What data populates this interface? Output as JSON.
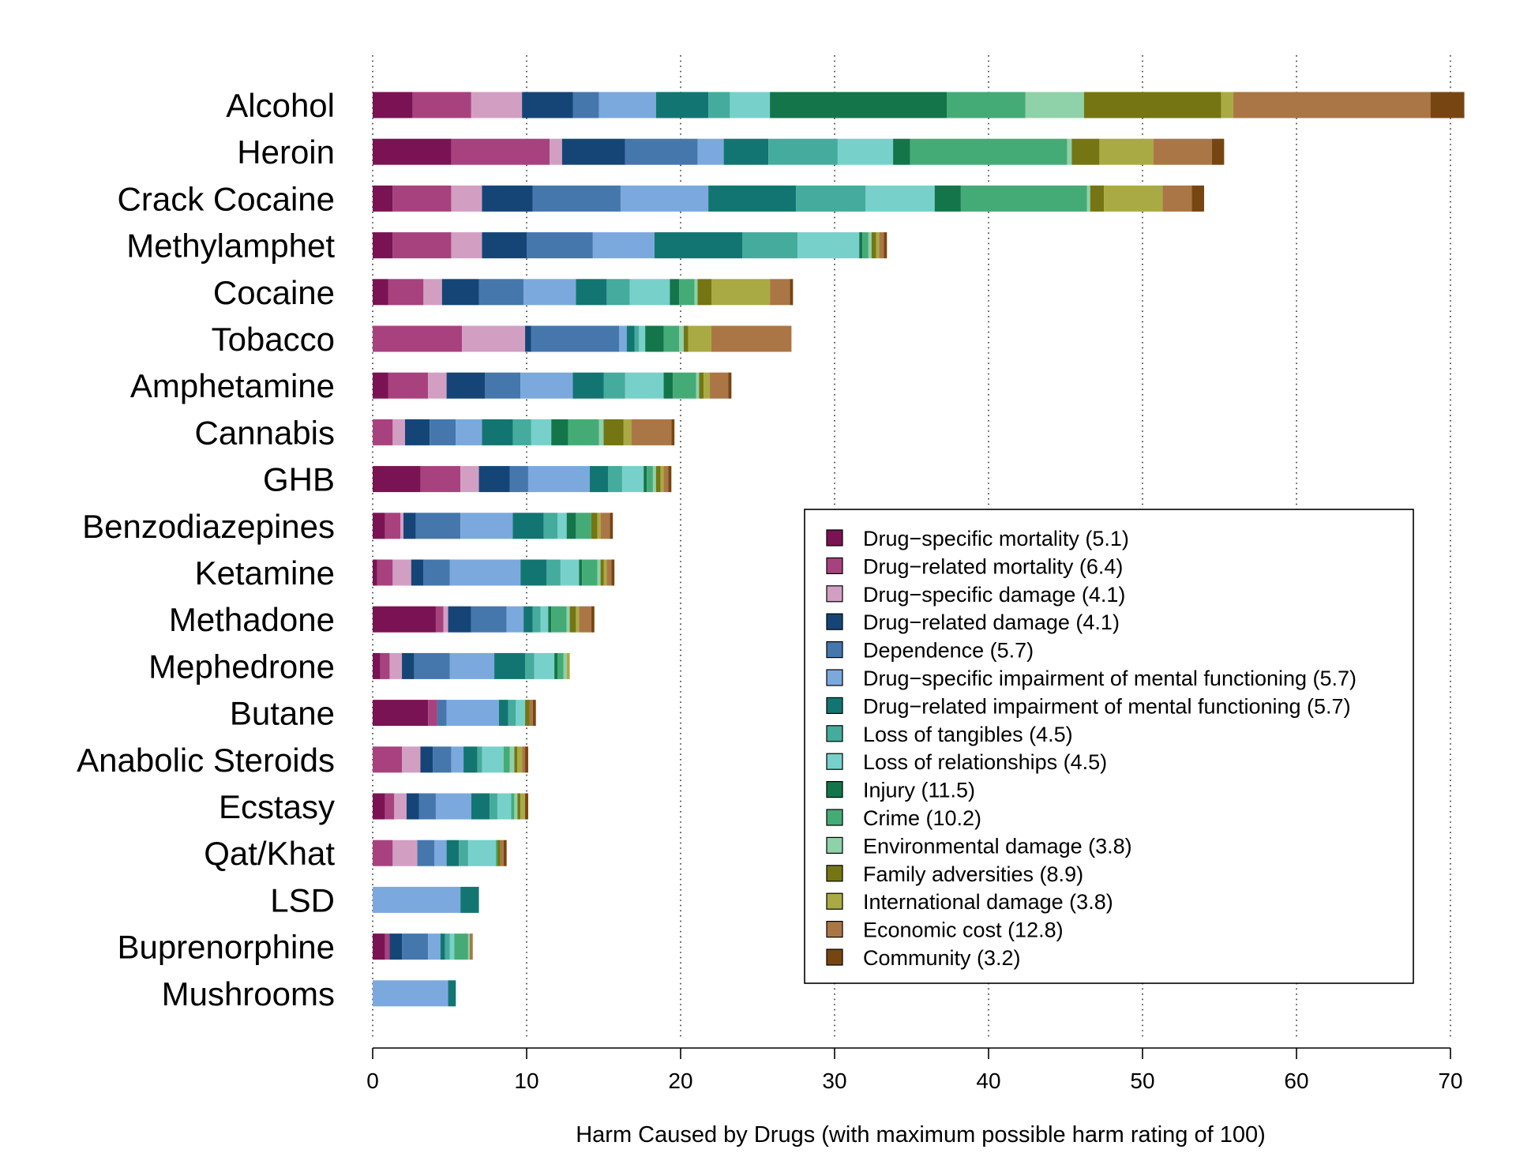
{
  "chart_data": {
    "type": "bar",
    "orientation": "horizontal",
    "stacked": true,
    "xlabel": "Harm Caused by Drugs (with maximum possible harm rating of 100)",
    "xlim": [
      0,
      72
    ],
    "xticks": [
      0,
      10,
      20,
      30,
      40,
      50,
      60,
      70
    ],
    "grid": true,
    "legend_position": "bottom-right",
    "categories": [
      "Alcohol",
      "Heroin",
      "Crack Cocaine",
      "Methylamphet",
      "Cocaine",
      "Tobacco",
      "Amphetamine",
      "Cannabis",
      "GHB",
      "Benzodiazepines",
      "Ketamine",
      "Methadone",
      "Mephedrone",
      "Butane",
      "Anabolic Steroids",
      "Ecstasy",
      "Qat/Khat",
      "LSD",
      "Buprenorphine",
      "Mushrooms"
    ],
    "series": [
      {
        "name": "Drug−specific mortality (5.1)",
        "color": "#7a1353",
        "values": [
          2.6,
          5.1,
          1.3,
          1.3,
          1.0,
          0.0,
          1.0,
          0.0,
          3.1,
          0.8,
          0.3,
          4.1,
          0.5,
          3.6,
          0.0,
          0.8,
          0.0,
          0.0,
          0.8,
          0.0
        ]
      },
      {
        "name": "Drug−related mortality (6.4)",
        "color": "#a8427f",
        "values": [
          3.8,
          6.4,
          3.8,
          3.8,
          2.3,
          5.8,
          2.6,
          1.3,
          2.6,
          1.0,
          1.0,
          0.5,
          0.6,
          0.6,
          1.9,
          0.6,
          1.3,
          0.0,
          0.3,
          0.0
        ]
      },
      {
        "name": "Drug−specific damage (4.1)",
        "color": "#d29fc3",
        "values": [
          3.3,
          0.8,
          2.0,
          2.0,
          1.2,
          4.1,
          1.2,
          0.8,
          1.2,
          0.2,
          1.2,
          0.3,
          0.8,
          0.0,
          1.2,
          0.8,
          1.6,
          0.0,
          0.0,
          0.0
        ]
      },
      {
        "name": "Drug−related damage (4.1)",
        "color": "#154577",
        "values": [
          3.3,
          4.1,
          3.3,
          2.9,
          2.4,
          0.4,
          2.5,
          1.6,
          2.0,
          0.8,
          0.8,
          1.5,
          0.8,
          0.0,
          0.8,
          0.8,
          0.0,
          0.0,
          0.8,
          0.0
        ]
      },
      {
        "name": "Dependence (5.7)",
        "color": "#4577ad",
        "values": [
          1.7,
          4.7,
          5.7,
          4.3,
          2.9,
          5.7,
          2.3,
          1.7,
          1.2,
          2.9,
          1.7,
          2.3,
          2.3,
          0.6,
          1.2,
          1.1,
          1.1,
          0.0,
          1.7,
          0.0
        ]
      },
      {
        "name": "Drug−specific impairment of mental functioning (5.7)",
        "color": "#7ba9de",
        "values": [
          3.7,
          1.7,
          5.7,
          4.0,
          3.4,
          0.5,
          3.4,
          1.7,
          4.0,
          3.4,
          4.6,
          1.1,
          2.9,
          3.4,
          0.8,
          2.3,
          0.8,
          5.7,
          0.8,
          4.9
        ]
      },
      {
        "name": "Drug−related impairment of mental functioning (5.7)",
        "color": "#137572",
        "values": [
          3.4,
          2.9,
          5.7,
          5.7,
          2.0,
          0.5,
          2.0,
          2.0,
          1.2,
          2.0,
          1.7,
          0.6,
          2.0,
          0.6,
          0.9,
          1.2,
          0.8,
          1.2,
          0.3,
          0.5
        ]
      },
      {
        "name": "Loss of tangibles (4.5)",
        "color": "#45ab9c",
        "values": [
          1.4,
          4.5,
          4.5,
          3.6,
          1.5,
          0.3,
          1.4,
          1.2,
          0.9,
          0.9,
          0.9,
          0.5,
          0.6,
          0.5,
          0.3,
          0.5,
          0.6,
          0.0,
          0.3,
          0.0
        ]
      },
      {
        "name": "Loss of relationships (4.5)",
        "color": "#78d0cb",
        "values": [
          2.6,
          3.6,
          4.5,
          4.0,
          2.6,
          0.4,
          2.5,
          1.3,
          1.4,
          0.6,
          1.2,
          0.5,
          1.3,
          0.6,
          1.4,
          0.9,
          1.8,
          0.0,
          0.3,
          0.0
        ]
      },
      {
        "name": "Injury (11.5)",
        "color": "#14754a",
        "values": [
          11.5,
          1.1,
          1.7,
          0.2,
          0.6,
          1.2,
          0.6,
          1.1,
          0.2,
          0.6,
          0.2,
          0.2,
          0.2,
          0.0,
          0.0,
          0.0,
          0.0,
          0.0,
          0.0,
          0.0
        ]
      },
      {
        "name": "Crime (10.2)",
        "color": "#45ab76",
        "values": [
          5.1,
          10.2,
          8.2,
          0.4,
          1.0,
          1.0,
          1.5,
          2.0,
          0.4,
          1.0,
          1.0,
          1.0,
          0.4,
          0.0,
          0.4,
          0.2,
          0.1,
          0.0,
          0.9,
          0.0
        ]
      },
      {
        "name": "Environmental damage (3.8)",
        "color": "#8fd1a8",
        "values": [
          3.8,
          0.3,
          0.2,
          0.2,
          0.2,
          0.3,
          0.2,
          0.3,
          0.2,
          0.0,
          0.2,
          0.2,
          0.2,
          0.0,
          0.3,
          0.2,
          0.0,
          0.0,
          0.1,
          0.0
        ]
      },
      {
        "name": "Family adversities (8.9)",
        "color": "#757513",
        "values": [
          8.9,
          1.8,
          0.9,
          0.3,
          0.9,
          0.3,
          0.3,
          1.3,
          0.3,
          0.4,
          0.2,
          0.4,
          0.0,
          0.3,
          0.2,
          0.2,
          0.2,
          0.0,
          0.0,
          0.0
        ]
      },
      {
        "name": "International damage (3.8)",
        "color": "#aaaa44",
        "values": [
          0.8,
          3.5,
          3.8,
          0.2,
          3.8,
          1.5,
          0.4,
          0.5,
          0.2,
          0.2,
          0.2,
          0.2,
          0.2,
          0.0,
          0.3,
          0.3,
          0.0,
          0.0,
          0.0,
          0.0
        ]
      },
      {
        "name": "Economic cost (12.8)",
        "color": "#ab7645",
        "values": [
          12.8,
          3.8,
          1.9,
          0.3,
          1.3,
          5.2,
          1.2,
          2.6,
          0.3,
          0.6,
          0.3,
          0.8,
          0.0,
          0.2,
          0.2,
          0.0,
          0.2,
          0.0,
          0.2,
          0.0
        ]
      },
      {
        "name": "Community (3.2)",
        "color": "#774512",
        "values": [
          2.2,
          0.8,
          0.8,
          0.2,
          0.2,
          0.0,
          0.2,
          0.2,
          0.2,
          0.2,
          0.2,
          0.2,
          0.0,
          0.2,
          0.2,
          0.2,
          0.2,
          0.0,
          0.0,
          0.0
        ]
      }
    ]
  }
}
